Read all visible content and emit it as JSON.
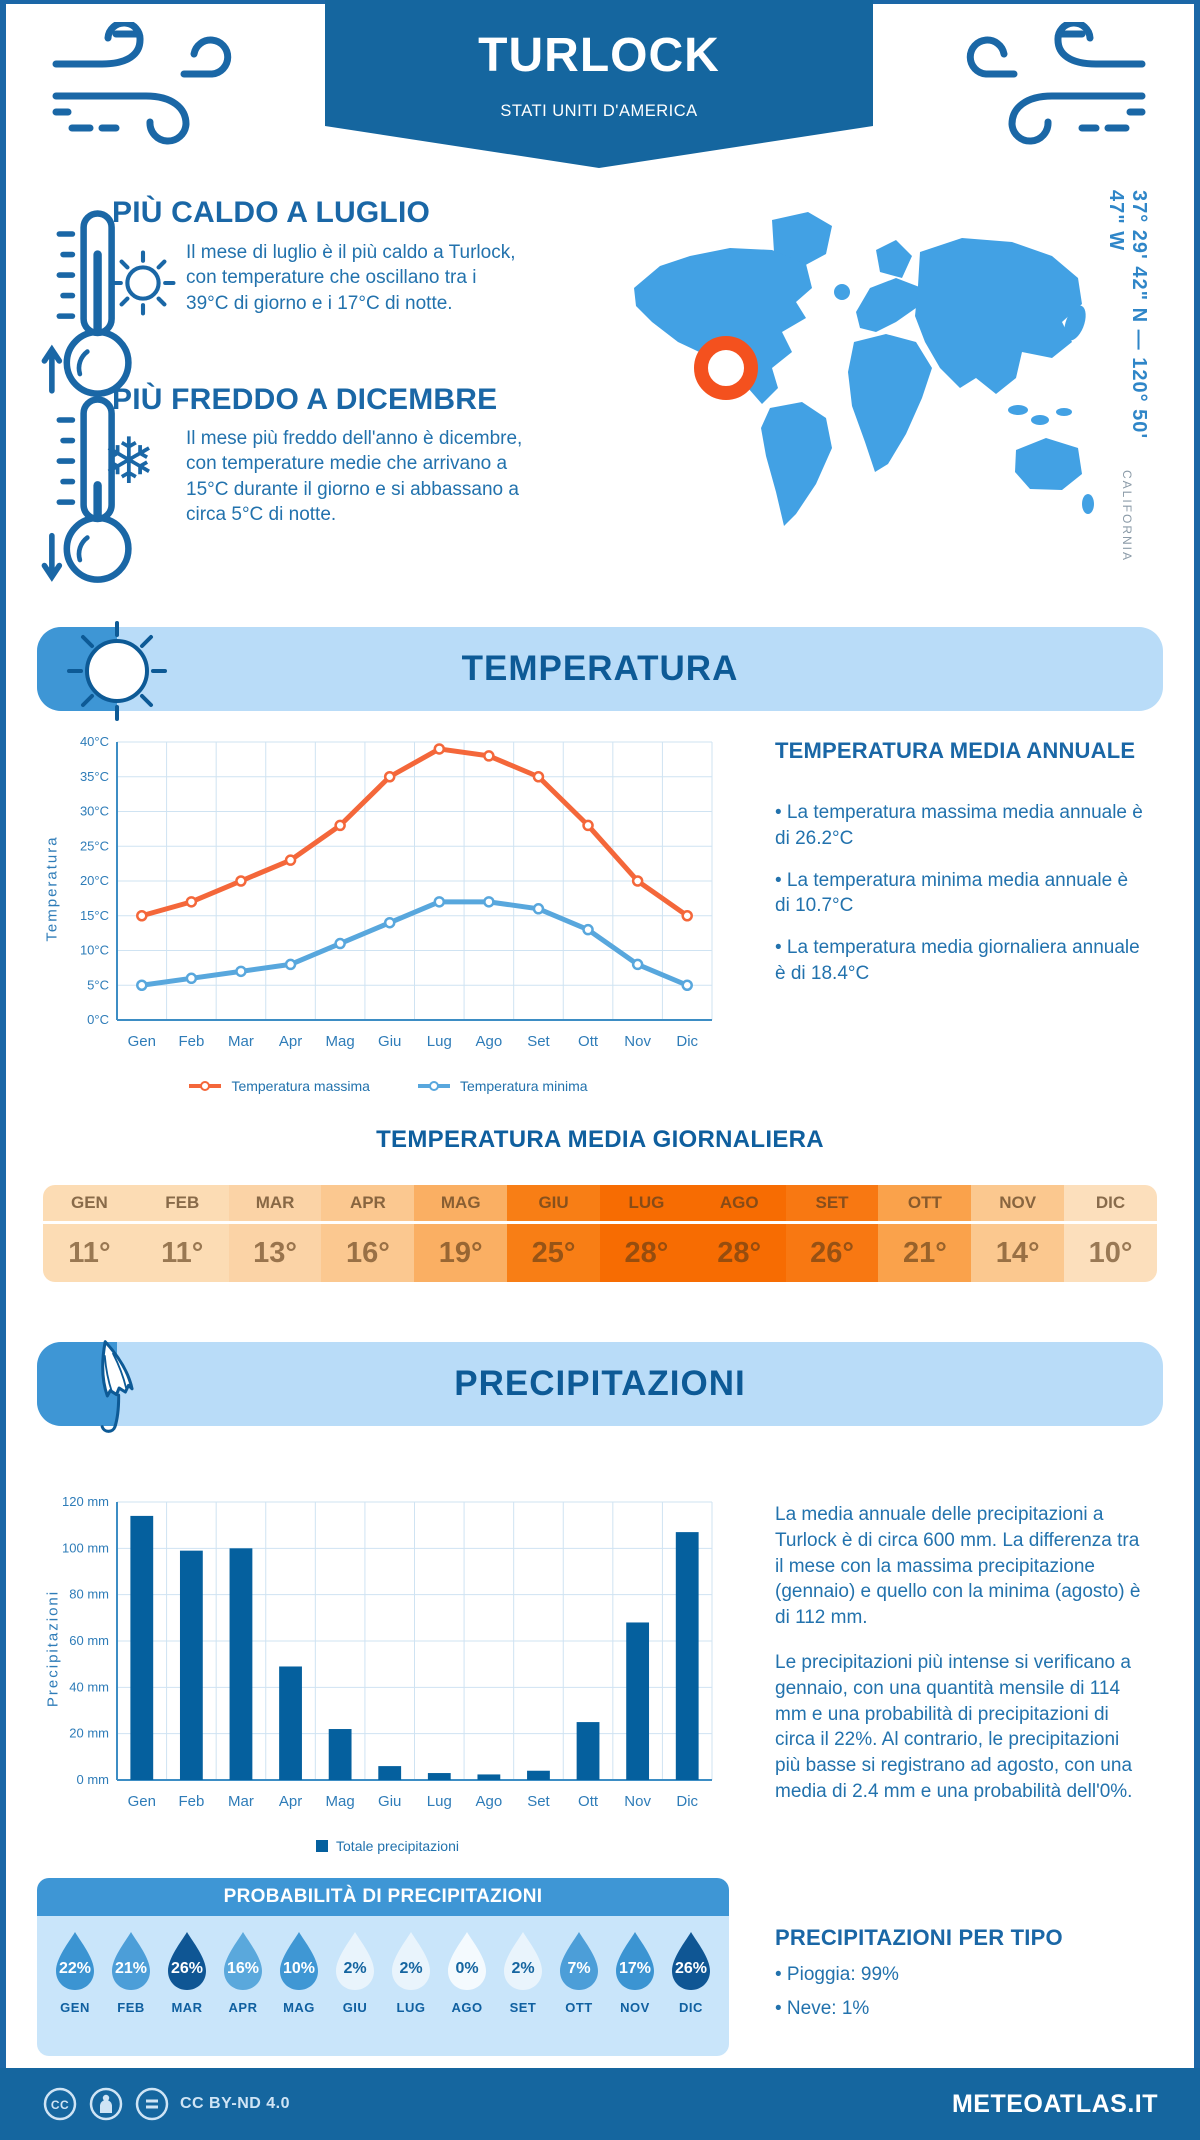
{
  "header": {
    "title": "TURLOCK",
    "subtitle": "STATI UNITI D'AMERICA"
  },
  "highlights": {
    "hot": {
      "heading": "PIÙ CALDO A LUGLIO",
      "text": "Il mese di luglio è il più caldo a Turlock, con temperature che oscillano tra i 39°C di giorno e i 17°C di notte."
    },
    "cold": {
      "heading": "PIÙ FREDDO A DICEMBRE",
      "text": "Il mese più freddo dell'anno è dicembre, con temperature medie che arrivano a 15°C durante il giorno e si abbassano a circa 5°C di notte."
    }
  },
  "map": {
    "coordinates": "37° 29' 42\" N — 120° 50' 47\" W",
    "region": "CALIFORNIA"
  },
  "sections": {
    "temperature_band": "TEMPERATURA",
    "precipitation_band": "PRECIPITAZIONI"
  },
  "annual": {
    "title": "TEMPERATURA MEDIA ANNUALE",
    "bullets": [
      "La temperatura massima media annuale è di 26.2°C",
      "La temperatura minima media annuale è di 10.7°C",
      "La temperatura media giornaliera annuale è di 18.4°C"
    ]
  },
  "daily": {
    "title": "TEMPERATURA MEDIA GIORNALIERA",
    "months": [
      {
        "label": "GEN",
        "value": "11°",
        "color": "#fcdcb4"
      },
      {
        "label": "FEB",
        "value": "11°",
        "color": "#fcdcb4"
      },
      {
        "label": "MAR",
        "value": "13°",
        "color": "#fbd3a6"
      },
      {
        "label": "APR",
        "value": "16°",
        "color": "#fbc890"
      },
      {
        "label": "MAG",
        "value": "19°",
        "color": "#faaf63"
      },
      {
        "label": "GIU",
        "value": "25°",
        "color": "#f87e15"
      },
      {
        "label": "LUG",
        "value": "28°",
        "color": "#f76c02"
      },
      {
        "label": "AGO",
        "value": "28°",
        "color": "#f76c02"
      },
      {
        "label": "SET",
        "value": "26°",
        "color": "#f87812"
      },
      {
        "label": "OTT",
        "value": "21°",
        "color": "#faa24b"
      },
      {
        "label": "NOV",
        "value": "14°",
        "color": "#fbc88f"
      },
      {
        "label": "DIC",
        "value": "10°",
        "color": "#fcdfbc"
      }
    ]
  },
  "precip_text": {
    "para1": "La media annuale delle precipitazioni a Turlock è di circa 600 mm. La differenza tra il mese con la massima precipitazione (gennaio) e quello con la minima (agosto) è di 112 mm.",
    "para2": "Le precipitazioni più intense si verificano a gennaio, con una quantità mensile di 114 mm e una probabilità di precipitazioni di circa il 22%. Al contrario, le precipitazioni più basse si registrano ad agosto, con una media di 2.4 mm e una probabilità dell'0%."
  },
  "probability": {
    "title": "PROBABILITÀ DI PRECIPITAZIONI",
    "items": [
      {
        "month": "GEN",
        "percent": "22%",
        "fill": "#3b94d2",
        "text_color": "#ffffff"
      },
      {
        "month": "FEB",
        "percent": "21%",
        "fill": "#4c9ed8",
        "text_color": "#ffffff"
      },
      {
        "month": "MAR",
        "percent": "26%",
        "fill": "#0f5694",
        "text_color": "#ffffff"
      },
      {
        "month": "APR",
        "percent": "16%",
        "fill": "#5aa8dc",
        "text_color": "#ffffff"
      },
      {
        "month": "MAG",
        "percent": "10%",
        "fill": "#3f97d4",
        "text_color": "#ffffff"
      },
      {
        "month": "GIU",
        "percent": "2%",
        "fill": "#e9f4fc",
        "text_color": "#1565a0"
      },
      {
        "month": "LUG",
        "percent": "2%",
        "fill": "#e9f4fc",
        "text_color": "#1565a0"
      },
      {
        "month": "AGO",
        "percent": "0%",
        "fill": "#f4fafe",
        "text_color": "#1565a0"
      },
      {
        "month": "SET",
        "percent": "2%",
        "fill": "#e9f4fc",
        "text_color": "#1565a0"
      },
      {
        "month": "OTT",
        "percent": "7%",
        "fill": "#4c9ed8",
        "text_color": "#ffffff"
      },
      {
        "month": "NOV",
        "percent": "17%",
        "fill": "#3b94d2",
        "text_color": "#ffffff"
      },
      {
        "month": "DIC",
        "percent": "26%",
        "fill": "#0f5694",
        "text_color": "#ffffff"
      }
    ]
  },
  "per_type": {
    "title": "PRECIPITAZIONI PER TIPO",
    "items": [
      "Pioggia: 99%",
      "Neve: 1%"
    ]
  },
  "footer": {
    "license": "CC BY-ND 4.0",
    "site": "METEOATLAS.IT"
  },
  "colors": {
    "primary": "#1a67a6",
    "banner": "#15669f",
    "band_bg": "#b9dcf8",
    "band_accent": "#3e96d5",
    "map_land": "#42a1e4",
    "map_marker": "#f4511e",
    "grid": "#cfe3f2",
    "axis": "#3d8dc4",
    "tick_text": "#2e7cb8",
    "bar": "#05609e"
  },
  "chart_data": [
    {
      "id": "temperature-monthly",
      "type": "line",
      "title": "",
      "x": [
        "Gen",
        "Feb",
        "Mar",
        "Apr",
        "Mag",
        "Giu",
        "Lug",
        "Ago",
        "Set",
        "Ott",
        "Nov",
        "Dic"
      ],
      "ylabel": "Temperatura",
      "ylim": [
        0,
        40
      ],
      "ytick_step": 5,
      "ytick_suffix": "°C",
      "grid": true,
      "legend_position": "bottom",
      "series": [
        {
          "name": "Temperatura massima",
          "color": "#f4673a",
          "values": [
            15,
            17,
            20,
            23,
            28,
            35,
            39,
            38,
            35,
            28,
            20,
            15
          ]
        },
        {
          "name": "Temperatura minima",
          "color": "#58a7dd",
          "values": [
            5,
            6,
            7,
            8,
            11,
            14,
            17,
            17,
            16,
            13,
            8,
            5
          ]
        }
      ]
    },
    {
      "id": "precipitation-monthly",
      "type": "bar",
      "title": "",
      "x": [
        "Gen",
        "Feb",
        "Mar",
        "Apr",
        "Mag",
        "Giu",
        "Lug",
        "Ago",
        "Set",
        "Ott",
        "Nov",
        "Dic"
      ],
      "ylabel": "Precipitazioni",
      "ylim": [
        0,
        120
      ],
      "ytick_step": 20,
      "ytick_suffix": " mm",
      "grid": true,
      "legend": "Totale precipitazioni",
      "bar_color": "#05609e",
      "values": [
        114,
        99,
        100,
        49,
        22,
        6,
        3,
        2.4,
        4,
        25,
        68,
        107
      ]
    }
  ]
}
